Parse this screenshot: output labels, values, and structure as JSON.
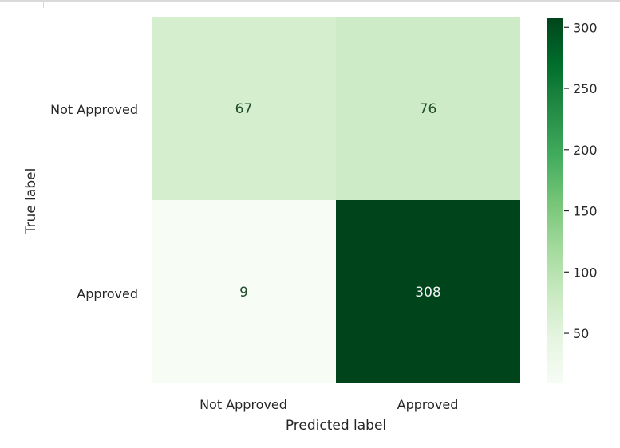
{
  "chart_data": {
    "type": "heatmap",
    "title": "",
    "xlabel": "Predicted label",
    "ylabel": "True label",
    "x_categories": [
      "Not Approved",
      "Approved"
    ],
    "y_categories": [
      "Not Approved",
      "Approved"
    ],
    "values": [
      [
        67,
        76
      ],
      [
        9,
        308
      ]
    ],
    "colormap": "Greens",
    "vmin": 9,
    "vmax": 308,
    "colorbar_ticks": [
      50,
      100,
      150,
      200,
      250,
      300
    ],
    "colorbar_tick_labels": [
      "50",
      "100",
      "150",
      "200",
      "250",
      "300"
    ],
    "grid": false
  }
}
